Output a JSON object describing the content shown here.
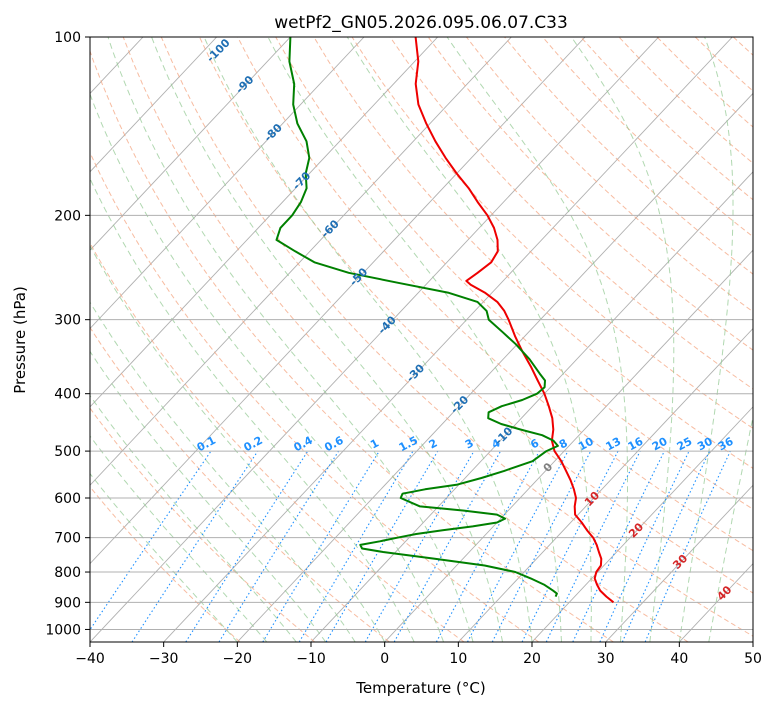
{
  "chart_data": {
    "type": "line",
    "subtype": "skew-t log-p",
    "title": "wetPf2_GN05.2026.095.06.07.C33",
    "xlabel": "Temperature (°C)",
    "ylabel": "Pressure (hPa)",
    "xlim": [
      -40,
      50
    ],
    "ylim": [
      1050,
      100
    ],
    "x_ticks": [
      -40,
      -30,
      -20,
      -10,
      0,
      10,
      20,
      30,
      40,
      50
    ],
    "y_ticks": [
      100,
      200,
      300,
      400,
      500,
      600,
      700,
      800,
      900,
      1000
    ],
    "series": [
      {
        "name": "temperature",
        "color": "#ee0000",
        "points": [
          [
            900,
            26.0
          ],
          [
            880,
            24.3
          ],
          [
            860,
            22.7
          ],
          [
            840,
            21.5
          ],
          [
            820,
            20.4
          ],
          [
            800,
            19.8
          ],
          [
            780,
            19.6
          ],
          [
            760,
            18.8
          ],
          [
            740,
            17.6
          ],
          [
            720,
            16.4
          ],
          [
            700,
            15.0
          ],
          [
            680,
            13.2
          ],
          [
            660,
            11.5
          ],
          [
            640,
            9.6
          ],
          [
            620,
            8.5
          ],
          [
            600,
            7.6
          ],
          [
            580,
            6.2
          ],
          [
            560,
            4.6
          ],
          [
            540,
            2.8
          ],
          [
            520,
            0.9
          ],
          [
            500,
            -1.3
          ],
          [
            480,
            -3.0
          ],
          [
            460,
            -4.2
          ],
          [
            440,
            -5.8
          ],
          [
            420,
            -7.8
          ],
          [
            400,
            -10.0
          ],
          [
            380,
            -12.6
          ],
          [
            360,
            -15.3
          ],
          [
            340,
            -18.3
          ],
          [
            320,
            -21.3
          ],
          [
            300,
            -24.3
          ],
          [
            290,
            -26.0
          ],
          [
            280,
            -28.1
          ],
          [
            270,
            -31.0
          ],
          [
            262,
            -33.9
          ],
          [
            258,
            -35.0
          ],
          [
            250,
            -34.5
          ],
          [
            240,
            -34.0
          ],
          [
            230,
            -34.5
          ],
          [
            220,
            -36.0
          ],
          [
            210,
            -38.0
          ],
          [
            200,
            -40.5
          ],
          [
            190,
            -43.5
          ],
          [
            180,
            -46.5
          ],
          [
            170,
            -50.0
          ],
          [
            160,
            -53.5
          ],
          [
            150,
            -57.0
          ],
          [
            140,
            -60.5
          ],
          [
            130,
            -64.0
          ],
          [
            120,
            -67.0
          ],
          [
            110,
            -69.5
          ],
          [
            100,
            -73.0
          ]
        ]
      },
      {
        "name": "dewpoint",
        "color": "#008000",
        "points": [
          [
            880,
            17.4
          ],
          [
            870,
            17.2
          ],
          [
            860,
            16.3
          ],
          [
            840,
            14.3
          ],
          [
            820,
            11.7
          ],
          [
            800,
            8.8
          ],
          [
            780,
            3.8
          ],
          [
            760,
            -3.8
          ],
          [
            740,
            -11.7
          ],
          [
            730,
            -15.0
          ],
          [
            720,
            -15.7
          ],
          [
            710,
            -13.5
          ],
          [
            700,
            -11.6
          ],
          [
            690,
            -9.5
          ],
          [
            680,
            -6.4
          ],
          [
            670,
            -2.8
          ],
          [
            660,
            0.0
          ],
          [
            650,
            0.6
          ],
          [
            640,
            -1.0
          ],
          [
            630,
            -6.0
          ],
          [
            620,
            -12.5
          ],
          [
            600,
            -16.2
          ],
          [
            590,
            -16.5
          ],
          [
            580,
            -14.0
          ],
          [
            570,
            -10.3
          ],
          [
            555,
            -7.8
          ],
          [
            540,
            -5.6
          ],
          [
            520,
            -3.0
          ],
          [
            500,
            -2.4
          ],
          [
            490,
            -1.5
          ],
          [
            480,
            -2.8
          ],
          [
            470,
            -5.0
          ],
          [
            460,
            -8.6
          ],
          [
            450,
            -12.0
          ],
          [
            440,
            -14.5
          ],
          [
            430,
            -15.2
          ],
          [
            420,
            -14.2
          ],
          [
            410,
            -12.2
          ],
          [
            400,
            -11.0
          ],
          [
            390,
            -10.8
          ],
          [
            380,
            -11.6
          ],
          [
            370,
            -13.2
          ],
          [
            350,
            -16.4
          ],
          [
            330,
            -20.2
          ],
          [
            315,
            -23.5
          ],
          [
            300,
            -27.0
          ],
          [
            290,
            -28.4
          ],
          [
            280,
            -30.8
          ],
          [
            270,
            -36.0
          ],
          [
            260,
            -44.0
          ],
          [
            250,
            -52.0
          ],
          [
            240,
            -58.0
          ],
          [
            230,
            -62.0
          ],
          [
            220,
            -66.0
          ],
          [
            210,
            -67.0
          ],
          [
            200,
            -67.0
          ],
          [
            190,
            -67.5
          ],
          [
            180,
            -68.5
          ],
          [
            170,
            -70.5
          ],
          [
            160,
            -72.0
          ],
          [
            150,
            -74.5
          ],
          [
            140,
            -78.0
          ],
          [
            130,
            -81.0
          ],
          [
            120,
            -83.5
          ],
          [
            110,
            -87.0
          ],
          [
            100,
            -90.0
          ]
        ]
      }
    ],
    "isotherm_labels": [
      "-100",
      "-90",
      "-80",
      "-70",
      "-60",
      "-50",
      "-40",
      "-30",
      "-20",
      "-10",
      "0",
      "10",
      "20",
      "30",
      "40"
    ],
    "isotherm_values": [
      -100,
      -90,
      -80,
      -70,
      -60,
      -50,
      -40,
      -30,
      -20,
      -10,
      0,
      10,
      20,
      30,
      40
    ],
    "mixing_ratio_labels": [
      "0.1",
      "0.2",
      "0.4",
      "0.6",
      "1",
      "1.5",
      "2",
      "3",
      "4",
      "6",
      "8",
      "10",
      "13",
      "16",
      "20",
      "25",
      "30",
      "36"
    ],
    "mixing_ratio_values": [
      0.1,
      0.2,
      0.4,
      0.6,
      1,
      1.5,
      2,
      3,
      4,
      6,
      8,
      10,
      13,
      16,
      20,
      25,
      30,
      36
    ],
    "background": {
      "grid": true,
      "isotherm_color": "#b0b0b0",
      "dry_adiabat_color": "#f4a582",
      "moist_adiabat_color": "#90c890",
      "mixing_ratio_color": "#1e90ff",
      "cold_label_color": "#1f6fb4",
      "warm_label_color": "#d62728"
    }
  }
}
